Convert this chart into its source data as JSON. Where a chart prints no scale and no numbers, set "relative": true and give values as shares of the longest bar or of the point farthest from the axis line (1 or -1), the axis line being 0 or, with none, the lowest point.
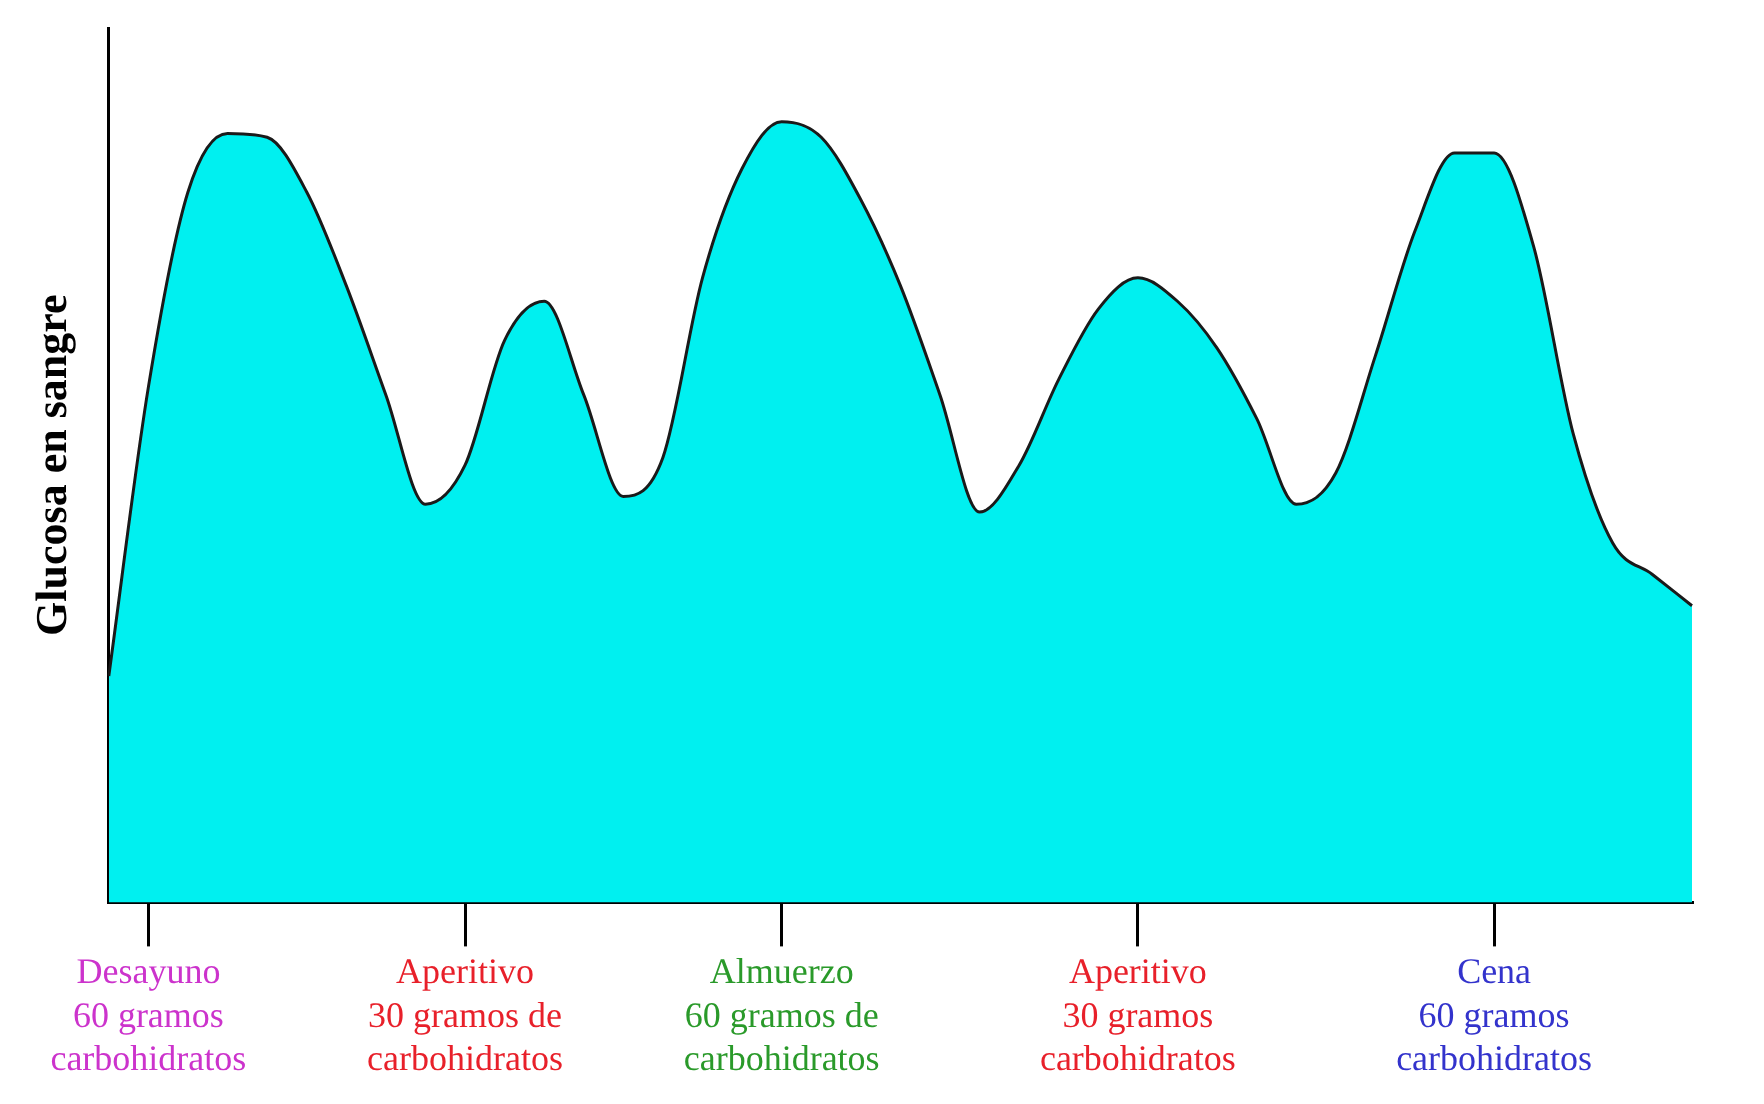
{
  "chart_data": {
    "type": "area",
    "relative": true,
    "ylabel": "Glucosa en sangre",
    "grid": false,
    "legend": false,
    "marker": "none",
    "categories": [
      null,
      "Desayuno\n60 gramos\ncarbohidratos",
      null,
      null,
      null,
      null,
      null,
      null,
      null,
      "Aperitivo\n30 gramos de\ncarbohidratos",
      null,
      null,
      null,
      null,
      null,
      null,
      null,
      "Almuerzo\n60 gramos de\ncarbohidratos",
      null,
      null,
      null,
      null,
      null,
      null,
      null,
      null,
      "Aperitivo\n30 gramos\ncarbohidratos",
      null,
      null,
      null,
      null,
      null,
      null,
      null,
      null,
      "Cena\n60 gramos\ncarbohidratos",
      null,
      null,
      null,
      null,
      null
    ],
    "series": [
      {
        "color": "#00f0f0",
        "values": [
          0.29,
          0.66,
          0.91,
          0.985,
          0.98,
          0.91,
          0.79,
          0.65,
          0.51,
          0.56,
          0.72,
          0.77,
          0.65,
          0.52,
          0.57,
          0.8,
          0.94,
          1,
          0.98,
          0.9,
          0.79,
          0.65,
          0.5,
          0.56,
          0.67,
          0.76,
          0.8,
          0.77,
          0.71,
          0.62,
          0.51,
          0.55,
          0.7,
          0.86,
          0.96,
          0.96,
          0.84,
          0.6,
          0.46,
          0.42,
          0.38
        ]
      }
    ]
  }
}
